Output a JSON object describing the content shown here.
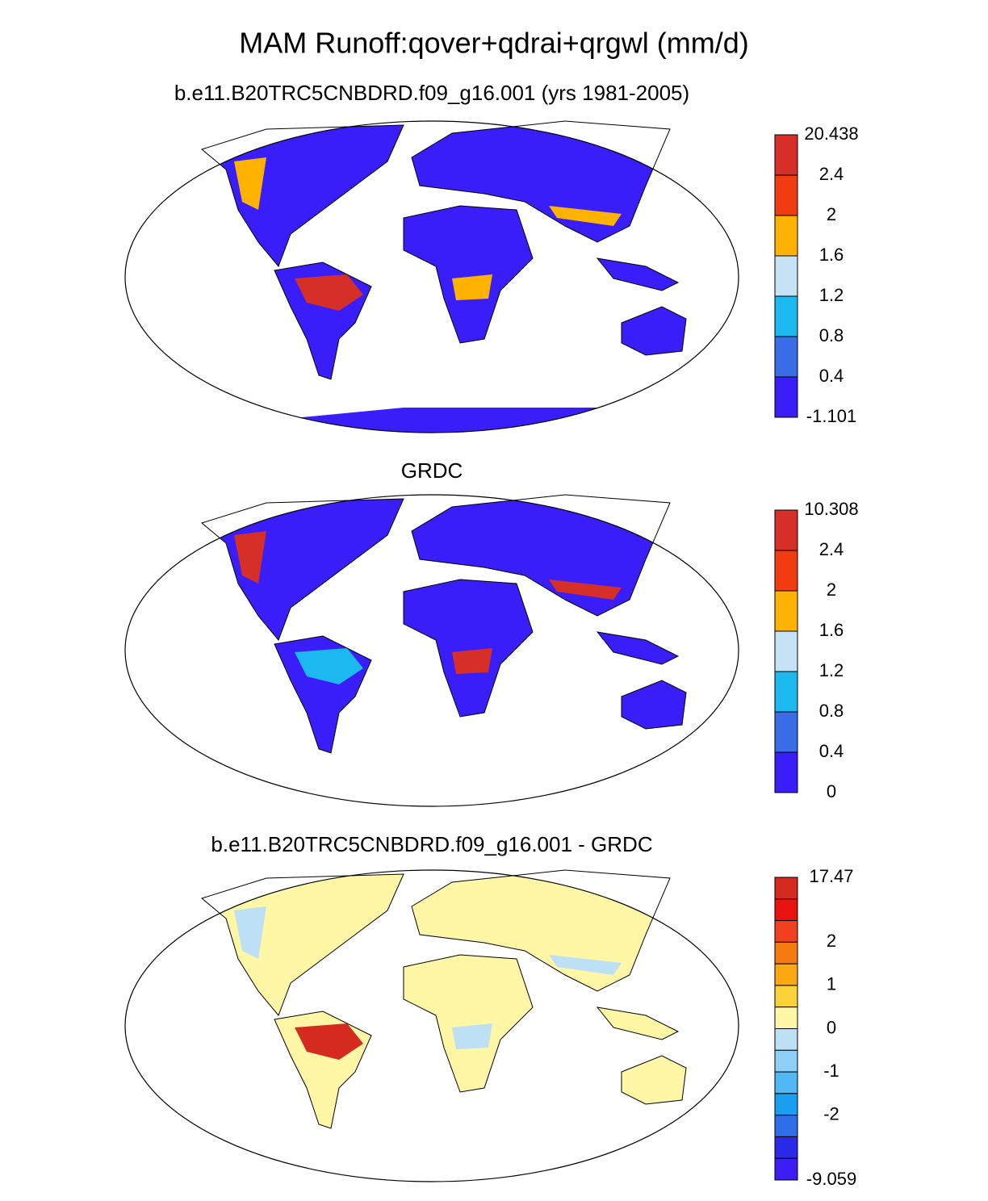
{
  "title": "MAM Runoff:qover+qdrai+qrgwl (mm/d)",
  "panels": [
    {
      "title": "b.e11.B20TRC5CNBDRD.f09_g16.001 (yrs 1981-2005)",
      "colorbar": {
        "labels": [
          "20.438",
          "2.4",
          "2",
          "1.6",
          "1.2",
          "0.8",
          "0.4",
          "-1.101"
        ],
        "colors": [
          "#d62f27",
          "#f03c10",
          "#ffb300",
          "#c6e2f5",
          "#1cb8f0",
          "#3a6ee8",
          "#3a1efa"
        ]
      }
    },
    {
      "title": "GRDC",
      "colorbar": {
        "labels": [
          "10.308",
          "2.4",
          "2",
          "1.6",
          "1.2",
          "0.8",
          "0.4",
          "0"
        ],
        "colors": [
          "#d62f27",
          "#f03c10",
          "#ffb300",
          "#c6e2f5",
          "#1cb8f0",
          "#3a6ee8",
          "#3a1efa"
        ]
      }
    },
    {
      "title": "b.e11.B20TRC5CNBDRD.f09_g16.001 - GRDC",
      "colorbar": {
        "labels": [
          "17.47",
          null,
          null,
          "2",
          null,
          "1",
          null,
          "0",
          null,
          "-1",
          null,
          "-2",
          null,
          null,
          "-9.059"
        ],
        "colors": [
          "#d42a20",
          "#e8120e",
          "#f04020",
          "#f57a10",
          "#fca812",
          "#fad23a",
          "#fff6a6",
          "#bde0f5",
          "#8ecff5",
          "#4fb8f5",
          "#1a9ef0",
          "#2e6ee8",
          "#2a2ae8",
          "#3c1ef5"
        ]
      }
    }
  ]
}
